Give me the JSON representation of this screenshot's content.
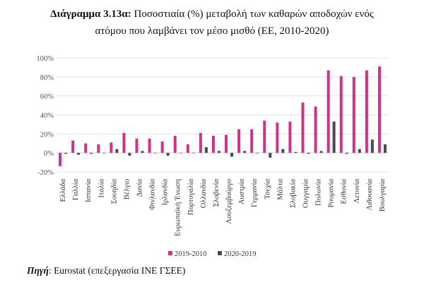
{
  "title": {
    "bold_part": "Διάγραμμα 3.13α:",
    "line1_rest": "Ποσοστιαία (%) μεταβολή των καθαρών αποδοχών ενός",
    "line2": "ατόμου που λαμβάνει τον μέσο μισθό (ΕΕ, 2010-2020)"
  },
  "source": {
    "label": "Πηγή",
    "text": ": Eurostat (επεξεργασία ΙΝΕ ΓΣΕΕ)"
  },
  "colors": {
    "series1": "#d1318a",
    "series2": "#4b4b4b",
    "grid": "#e3e3e3",
    "ticktext": "#555555"
  },
  "chart_data": {
    "type": "bar",
    "title": "",
    "xlabel": "",
    "ylabel": "",
    "ylim": [
      -20,
      100
    ],
    "yticks": [
      "-20%",
      "0%",
      "20%",
      "40%",
      "60%",
      "80%",
      "100%"
    ],
    "ytick_values": [
      -20,
      0,
      20,
      40,
      60,
      80,
      100
    ],
    "grid": true,
    "legend_position": "bottom",
    "categories": [
      "Ελλάδα",
      "Γαλλία",
      "Ισπανία",
      "Ιταλία",
      "Σουηδία",
      "Βέλγιο",
      "Δανία",
      "Φινλανδία",
      "Ιρλανδία",
      "Ευρωπαϊκή Ένωση",
      "Πορτογαλία",
      "Ολλανδία",
      "Σλοβενία",
      "Λουξεμβούργο",
      "Αυστρία",
      "Γερμανία",
      "Τσεχία",
      "Μάλτα",
      "Σλοβακία",
      "Ουγγαρία",
      "Πολωνία",
      "Ρουμανία",
      "Εσθονία",
      "Λετονία",
      "Λιθουανία",
      "Βουλγαρία"
    ],
    "series": [
      {
        "name": "2019-2010",
        "values": [
          -14,
          13,
          10,
          9,
          11,
          21,
          15,
          15,
          12,
          18,
          9,
          21,
          18,
          19,
          25,
          25,
          34,
          32,
          33,
          53,
          49,
          87,
          81,
          80,
          87,
          91
        ]
      },
      {
        "name": "2020-2019",
        "values": [
          -1,
          -2,
          -1,
          0,
          4,
          -3,
          2,
          0,
          -3,
          0,
          0,
          6,
          2,
          -4,
          2,
          0,
          -5,
          4,
          1,
          -1,
          2,
          33,
          -1,
          4,
          14,
          9
        ]
      }
    ]
  }
}
